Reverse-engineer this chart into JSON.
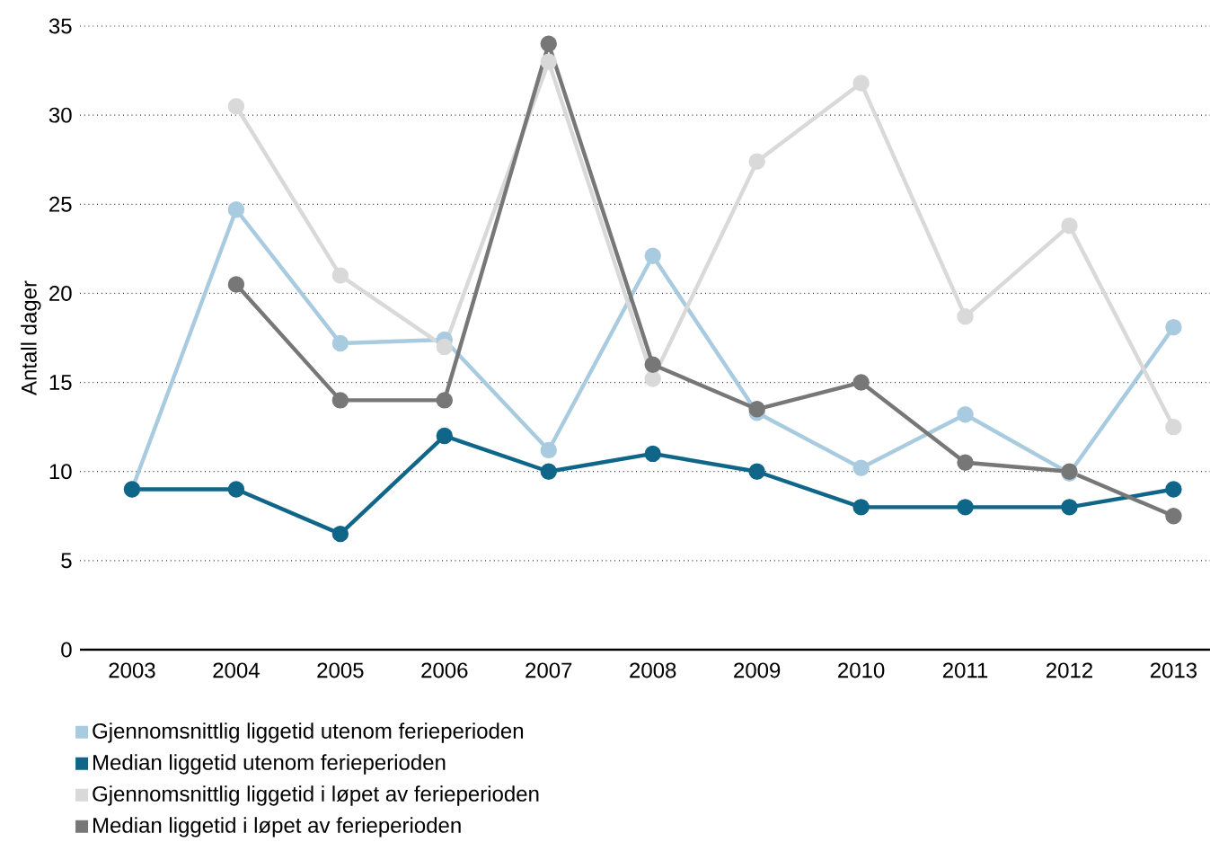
{
  "chart_data": {
    "type": "line",
    "ylabel": "Antall dager",
    "categories": [
      "2003",
      "2004",
      "2005",
      "2006",
      "2007",
      "2008",
      "2009",
      "2010",
      "2011",
      "2012",
      "2013"
    ],
    "series": [
      {
        "name": "Gjennomsnittlig liggetid utenom ferieperioden",
        "color": "#a9cbe0",
        "values": [
          9,
          24.7,
          17.2,
          17.4,
          11.2,
          22.1,
          13.3,
          10.2,
          13.2,
          9.9,
          18.1
        ]
      },
      {
        "name": "Median liggetid utenom ferieperioden",
        "color": "#0f6688",
        "values": [
          9,
          9,
          6.5,
          12,
          10,
          11,
          10,
          8,
          8,
          8,
          9
        ]
      },
      {
        "name": "Gjennomsnittlig liggetid i løpet av ferieperioden",
        "color": "#d9d9d9",
        "values": [
          null,
          30.5,
          21,
          17,
          33,
          15.2,
          27.4,
          31.8,
          18.7,
          23.8,
          12.5
        ]
      },
      {
        "name": "Median liggetid i løpet av ferieperioden",
        "color": "#777777",
        "values": [
          null,
          20.5,
          14,
          14,
          34,
          16,
          13.5,
          15,
          10.5,
          10,
          7.5
        ]
      }
    ],
    "ylim": [
      0,
      35
    ],
    "yticks": [
      0,
      5,
      10,
      15,
      20,
      25,
      30,
      35
    ],
    "grid": "y",
    "legend": "bottom",
    "marker": "circle",
    "line_style": "solid"
  }
}
